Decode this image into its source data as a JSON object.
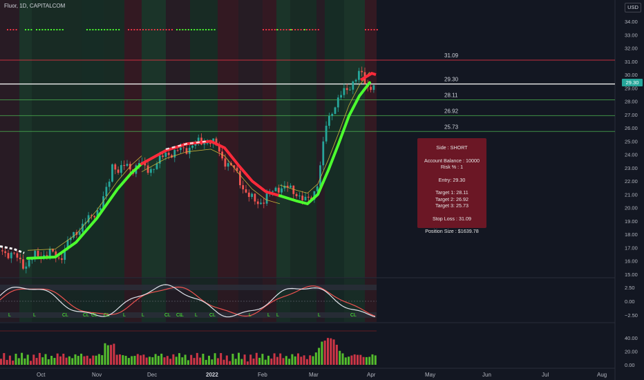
{
  "header": {
    "symbol_title": "Fluor, 1D, CAPITALCOM",
    "currency": "USD"
  },
  "price_axis": {
    "labels": [
      "34.00",
      "33.00",
      "32.00",
      "31.00",
      "30.00",
      "29.00",
      "28.00",
      "27.00",
      "26.00",
      "25.00",
      "24.00",
      "23.00",
      "22.00",
      "21.00",
      "20.00",
      "19.00",
      "18.00",
      "17.00",
      "16.00",
      "15.00"
    ],
    "last_price": "29.30"
  },
  "levels": [
    {
      "value": "31.09",
      "color": "#f23645"
    },
    {
      "value": "29.30",
      "color": "#ffffff"
    },
    {
      "value": "28.11",
      "color": "#4caf50"
    },
    {
      "value": "26.92",
      "color": "#4caf50"
    },
    {
      "value": "25.73",
      "color": "#4caf50"
    }
  ],
  "trade_box": {
    "side": "Side : SHORT",
    "account_balance": "Account Balance : 10000",
    "risk": "Risk % : 1",
    "entry": "Entry: 29.30",
    "target1": "Target 1: 28.11",
    "target2": "Target 2: 26.92",
    "target3": "Target 3: 25.73",
    "stop_loss": "Stop Loss : 31.09",
    "position_size": "Position Size : $1639.78"
  },
  "oscillator": {
    "axis_labels": [
      "2.50",
      "0.00",
      "−2.50"
    ],
    "cl_labels": [
      "L",
      "L",
      "CL",
      "CL",
      "CL",
      "CL",
      "L",
      "L",
      "CL",
      "CL",
      "L",
      "L",
      "CL",
      "L",
      "L",
      "L",
      "L",
      "CL"
    ]
  },
  "volume": {
    "axis_labels": [
      "40.00",
      "20.00",
      "0.00"
    ]
  },
  "time_axis": {
    "labels": [
      "Oct",
      "Nov",
      "Dec",
      "2022",
      "Feb",
      "Mar",
      "Apr",
      "May",
      "Jun",
      "Jul",
      "Aug"
    ]
  },
  "colors": {
    "background": "#131722",
    "bull": "#26a69a",
    "bear": "#ef5350",
    "trend_up": "#4cff2f",
    "trend_down": "#ff2a3a",
    "trade_box": "#6b1725"
  }
}
